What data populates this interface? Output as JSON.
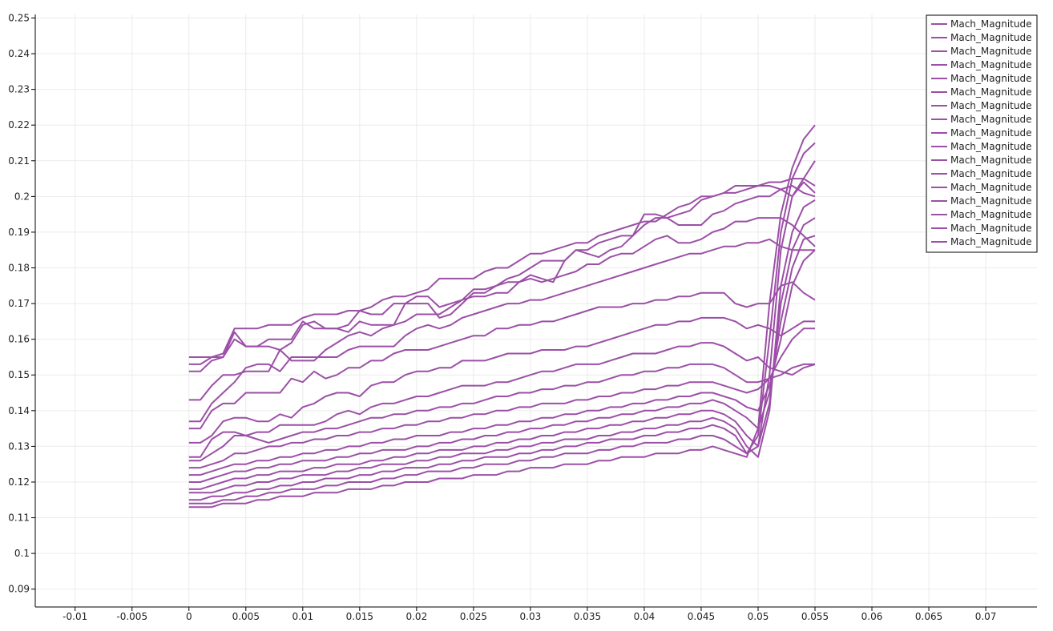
{
  "series_color": "#9b4fa6",
  "chart_data": {
    "type": "line",
    "title": "",
    "xlabel": "",
    "ylabel": "",
    "xlim": [
      -0.0135,
      0.0745
    ],
    "ylim": [
      0.085,
      0.251
    ],
    "grid": true,
    "legend_position": "top-right",
    "x_ticks": [
      "-0.01",
      "-0.005",
      "0",
      "0.005",
      "0.01",
      "0.015",
      "0.02",
      "0.025",
      "0.03",
      "0.035",
      "0.04",
      "0.045",
      "0.05",
      "0.055",
      "0.06",
      "0.065",
      "0.07"
    ],
    "y_ticks": [
      "0.09",
      "0.1",
      "0.11",
      "0.12",
      "0.13",
      "0.14",
      "0.15",
      "0.16",
      "0.17",
      "0.18",
      "0.19",
      "0.2",
      "0.21",
      "0.22",
      "0.23",
      "0.24",
      "0.25"
    ],
    "series": [
      {
        "name": "Mach_Magnitude",
        "y": [
          0.155,
          0.155,
          0.155,
          0.156,
          0.163,
          0.163,
          0.163,
          0.164,
          0.164,
          0.164,
          0.166,
          0.167,
          0.167,
          0.167,
          0.168,
          0.168,
          0.169,
          0.171,
          0.172,
          0.172,
          0.173,
          0.174,
          0.177,
          0.177,
          0.177,
          0.177,
          0.179,
          0.18,
          0.18,
          0.182,
          0.184,
          0.184,
          0.185,
          0.186,
          0.187,
          0.187,
          0.189,
          0.19,
          0.191,
          0.192,
          0.193,
          0.193,
          0.195,
          0.197,
          0.198,
          0.2,
          0.2,
          0.201,
          0.203,
          0.203,
          0.203,
          0.204,
          0.204,
          0.205,
          0.205,
          0.203
        ]
      },
      {
        "name": "Mach_Magnitude",
        "y": [
          0.153,
          0.153,
          0.155,
          0.155,
          0.162,
          0.158,
          0.158,
          0.16,
          0.16,
          0.16,
          0.165,
          0.163,
          0.163,
          0.163,
          0.164,
          0.168,
          0.167,
          0.167,
          0.17,
          0.17,
          0.172,
          0.172,
          0.169,
          0.17,
          0.171,
          0.174,
          0.174,
          0.175,
          0.177,
          0.178,
          0.18,
          0.182,
          0.182,
          0.182,
          0.185,
          0.185,
          0.187,
          0.188,
          0.189,
          0.189,
          0.192,
          0.194,
          0.194,
          0.195,
          0.196,
          0.199,
          0.2,
          0.201,
          0.201,
          0.202,
          0.203,
          0.203,
          0.202,
          0.2,
          0.204,
          0.201
        ]
      },
      {
        "name": "Mach_Magnitude",
        "y": [
          0.151,
          0.151,
          0.154,
          0.155,
          0.16,
          0.158,
          0.158,
          0.158,
          0.157,
          0.159,
          0.164,
          0.165,
          0.163,
          0.163,
          0.162,
          0.165,
          0.164,
          0.164,
          0.164,
          0.17,
          0.17,
          0.17,
          0.166,
          0.167,
          0.17,
          0.173,
          0.173,
          0.175,
          0.176,
          0.176,
          0.178,
          0.177,
          0.176,
          0.182,
          0.185,
          0.184,
          0.183,
          0.185,
          0.186,
          0.189,
          0.195,
          0.195,
          0.194,
          0.192,
          0.192,
          0.192,
          0.195,
          0.196,
          0.198,
          0.199,
          0.2,
          0.2,
          0.202,
          0.203,
          0.201,
          0.2
        ]
      },
      {
        "name": "Mach_Magnitude",
        "y": [
          0.143,
          0.143,
          0.147,
          0.15,
          0.15,
          0.151,
          0.151,
          0.151,
          0.157,
          0.154,
          0.154,
          0.154,
          0.157,
          0.159,
          0.161,
          0.162,
          0.161,
          0.163,
          0.164,
          0.165,
          0.167,
          0.167,
          0.167,
          0.169,
          0.171,
          0.172,
          0.172,
          0.173,
          0.173,
          0.176,
          0.177,
          0.176,
          0.177,
          0.178,
          0.179,
          0.181,
          0.181,
          0.183,
          0.184,
          0.184,
          0.186,
          0.188,
          0.189,
          0.187,
          0.187,
          0.188,
          0.19,
          0.191,
          0.193,
          0.193,
          0.194,
          0.194,
          0.194,
          0.192,
          0.189,
          0.186
        ]
      },
      {
        "name": "Mach_Magnitude",
        "y": [
          0.137,
          0.137,
          0.142,
          0.145,
          0.148,
          0.152,
          0.153,
          0.153,
          0.151,
          0.155,
          0.155,
          0.155,
          0.155,
          0.155,
          0.157,
          0.158,
          0.158,
          0.158,
          0.158,
          0.161,
          0.163,
          0.164,
          0.163,
          0.164,
          0.166,
          0.167,
          0.168,
          0.169,
          0.17,
          0.17,
          0.171,
          0.171,
          0.172,
          0.173,
          0.174,
          0.175,
          0.176,
          0.177,
          0.178,
          0.179,
          0.18,
          0.181,
          0.182,
          0.183,
          0.184,
          0.184,
          0.185,
          0.186,
          0.186,
          0.187,
          0.187,
          0.188,
          0.186,
          0.185,
          0.185,
          0.185
        ]
      },
      {
        "name": "Mach_Magnitude",
        "y": [
          0.135,
          0.135,
          0.14,
          0.142,
          0.142,
          0.145,
          0.145,
          0.145,
          0.145,
          0.149,
          0.148,
          0.151,
          0.149,
          0.15,
          0.152,
          0.152,
          0.154,
          0.154,
          0.156,
          0.157,
          0.157,
          0.157,
          0.158,
          0.159,
          0.16,
          0.161,
          0.161,
          0.163,
          0.163,
          0.164,
          0.164,
          0.165,
          0.165,
          0.166,
          0.167,
          0.168,
          0.169,
          0.169,
          0.169,
          0.17,
          0.17,
          0.171,
          0.171,
          0.172,
          0.172,
          0.173,
          0.173,
          0.173,
          0.17,
          0.169,
          0.17,
          0.17,
          0.175,
          0.176,
          0.173,
          0.171
        ]
      },
      {
        "name": "Mach_Magnitude",
        "y": [
          0.131,
          0.131,
          0.133,
          0.137,
          0.138,
          0.138,
          0.137,
          0.137,
          0.139,
          0.138,
          0.141,
          0.142,
          0.144,
          0.145,
          0.145,
          0.144,
          0.147,
          0.148,
          0.148,
          0.15,
          0.151,
          0.151,
          0.152,
          0.152,
          0.154,
          0.154,
          0.154,
          0.155,
          0.156,
          0.156,
          0.156,
          0.157,
          0.157,
          0.157,
          0.158,
          0.158,
          0.159,
          0.16,
          0.161,
          0.162,
          0.163,
          0.164,
          0.164,
          0.165,
          0.165,
          0.166,
          0.166,
          0.166,
          0.165,
          0.163,
          0.164,
          0.163,
          0.161,
          0.163,
          0.165,
          0.165
        ]
      },
      {
        "name": "Mach_Magnitude",
        "y": [
          0.127,
          0.127,
          0.132,
          0.134,
          0.134,
          0.133,
          0.134,
          0.134,
          0.136,
          0.136,
          0.136,
          0.136,
          0.137,
          0.139,
          0.14,
          0.139,
          0.141,
          0.142,
          0.142,
          0.143,
          0.144,
          0.144,
          0.145,
          0.146,
          0.147,
          0.147,
          0.147,
          0.148,
          0.148,
          0.149,
          0.15,
          0.151,
          0.151,
          0.152,
          0.153,
          0.153,
          0.153,
          0.154,
          0.155,
          0.156,
          0.156,
          0.156,
          0.157,
          0.158,
          0.158,
          0.159,
          0.159,
          0.158,
          0.156,
          0.154,
          0.155,
          0.152,
          0.151,
          0.15,
          0.152,
          0.153
        ]
      },
      {
        "name": "Mach_Magnitude",
        "y": [
          0.126,
          0.126,
          0.128,
          0.13,
          0.133,
          0.133,
          0.132,
          0.131,
          0.132,
          0.133,
          0.134,
          0.134,
          0.135,
          0.135,
          0.136,
          0.137,
          0.138,
          0.138,
          0.139,
          0.139,
          0.14,
          0.14,
          0.141,
          0.141,
          0.142,
          0.142,
          0.143,
          0.144,
          0.144,
          0.145,
          0.145,
          0.146,
          0.146,
          0.147,
          0.147,
          0.148,
          0.148,
          0.149,
          0.15,
          0.15,
          0.151,
          0.151,
          0.152,
          0.152,
          0.153,
          0.153,
          0.153,
          0.152,
          0.15,
          0.148,
          0.148,
          0.149,
          0.15,
          0.152,
          0.153,
          0.153
        ]
      },
      {
        "name": "Mach_Magnitude",
        "y": [
          0.124,
          0.124,
          0.125,
          0.126,
          0.128,
          0.128,
          0.129,
          0.13,
          0.13,
          0.131,
          0.131,
          0.132,
          0.132,
          0.133,
          0.133,
          0.134,
          0.134,
          0.135,
          0.135,
          0.136,
          0.136,
          0.137,
          0.137,
          0.138,
          0.138,
          0.139,
          0.139,
          0.14,
          0.14,
          0.141,
          0.141,
          0.142,
          0.142,
          0.142,
          0.143,
          0.143,
          0.144,
          0.144,
          0.145,
          0.145,
          0.146,
          0.146,
          0.147,
          0.147,
          0.148,
          0.148,
          0.148,
          0.147,
          0.146,
          0.145,
          0.146,
          0.149,
          0.155,
          0.16,
          0.163,
          0.163
        ]
      },
      {
        "name": "Mach_Magnitude",
        "y": [
          0.122,
          0.122,
          0.123,
          0.124,
          0.125,
          0.125,
          0.126,
          0.126,
          0.127,
          0.127,
          0.128,
          0.128,
          0.129,
          0.129,
          0.13,
          0.13,
          0.131,
          0.131,
          0.132,
          0.132,
          0.133,
          0.133,
          0.133,
          0.134,
          0.134,
          0.135,
          0.135,
          0.136,
          0.136,
          0.137,
          0.137,
          0.138,
          0.138,
          0.139,
          0.139,
          0.14,
          0.14,
          0.141,
          0.141,
          0.142,
          0.142,
          0.143,
          0.143,
          0.144,
          0.144,
          0.145,
          0.145,
          0.144,
          0.143,
          0.141,
          0.14,
          0.147,
          0.16,
          0.175,
          0.182,
          0.185
        ]
      },
      {
        "name": "Mach_Magnitude",
        "y": [
          0.12,
          0.12,
          0.121,
          0.122,
          0.123,
          0.123,
          0.124,
          0.124,
          0.125,
          0.125,
          0.126,
          0.126,
          0.126,
          0.127,
          0.127,
          0.128,
          0.128,
          0.129,
          0.129,
          0.129,
          0.13,
          0.13,
          0.131,
          0.131,
          0.132,
          0.132,
          0.133,
          0.133,
          0.134,
          0.134,
          0.135,
          0.135,
          0.136,
          0.136,
          0.137,
          0.137,
          0.138,
          0.138,
          0.139,
          0.139,
          0.14,
          0.14,
          0.141,
          0.141,
          0.142,
          0.142,
          0.143,
          0.142,
          0.14,
          0.138,
          0.135,
          0.145,
          0.165,
          0.18,
          0.188,
          0.189
        ]
      },
      {
        "name": "Mach_Magnitude",
        "y": [
          0.118,
          0.118,
          0.119,
          0.12,
          0.121,
          0.121,
          0.122,
          0.122,
          0.123,
          0.123,
          0.123,
          0.124,
          0.124,
          0.125,
          0.125,
          0.125,
          0.126,
          0.126,
          0.127,
          0.127,
          0.128,
          0.128,
          0.129,
          0.129,
          0.129,
          0.13,
          0.13,
          0.131,
          0.131,
          0.132,
          0.132,
          0.133,
          0.133,
          0.134,
          0.134,
          0.135,
          0.135,
          0.136,
          0.136,
          0.137,
          0.137,
          0.138,
          0.138,
          0.139,
          0.139,
          0.14,
          0.14,
          0.139,
          0.137,
          0.133,
          0.13,
          0.142,
          0.17,
          0.185,
          0.192,
          0.194
        ]
      },
      {
        "name": "Mach_Magnitude",
        "y": [
          0.117,
          0.117,
          0.117,
          0.118,
          0.119,
          0.119,
          0.12,
          0.12,
          0.121,
          0.121,
          0.122,
          0.122,
          0.122,
          0.123,
          0.123,
          0.124,
          0.124,
          0.125,
          0.125,
          0.125,
          0.126,
          0.126,
          0.127,
          0.127,
          0.128,
          0.128,
          0.128,
          0.129,
          0.129,
          0.13,
          0.13,
          0.131,
          0.131,
          0.132,
          0.132,
          0.132,
          0.133,
          0.133,
          0.134,
          0.134,
          0.135,
          0.135,
          0.136,
          0.136,
          0.137,
          0.137,
          0.138,
          0.137,
          0.135,
          0.13,
          0.127,
          0.14,
          0.175,
          0.19,
          0.197,
          0.199
        ]
      },
      {
        "name": "Mach_Magnitude",
        "y": [
          0.115,
          0.115,
          0.116,
          0.116,
          0.117,
          0.117,
          0.118,
          0.118,
          0.119,
          0.119,
          0.12,
          0.12,
          0.121,
          0.121,
          0.121,
          0.122,
          0.122,
          0.123,
          0.123,
          0.124,
          0.124,
          0.124,
          0.125,
          0.125,
          0.126,
          0.126,
          0.127,
          0.127,
          0.127,
          0.128,
          0.128,
          0.129,
          0.129,
          0.13,
          0.13,
          0.131,
          0.131,
          0.132,
          0.132,
          0.132,
          0.133,
          0.133,
          0.134,
          0.134,
          0.135,
          0.135,
          0.136,
          0.135,
          0.133,
          0.128,
          0.13,
          0.15,
          0.185,
          0.2,
          0.205,
          0.21
        ]
      },
      {
        "name": "Mach_Magnitude",
        "y": [
          0.114,
          0.114,
          0.114,
          0.115,
          0.115,
          0.116,
          0.116,
          0.117,
          0.117,
          0.118,
          0.118,
          0.118,
          0.119,
          0.119,
          0.12,
          0.12,
          0.12,
          0.121,
          0.121,
          0.122,
          0.122,
          0.123,
          0.123,
          0.123,
          0.124,
          0.124,
          0.125,
          0.125,
          0.125,
          0.126,
          0.126,
          0.127,
          0.127,
          0.128,
          0.128,
          0.128,
          0.129,
          0.129,
          0.13,
          0.13,
          0.131,
          0.131,
          0.131,
          0.132,
          0.132,
          0.133,
          0.133,
          0.132,
          0.13,
          0.128,
          0.133,
          0.16,
          0.19,
          0.205,
          0.212,
          0.215
        ]
      },
      {
        "name": "Mach_Magnitude",
        "y": [
          0.113,
          0.113,
          0.113,
          0.114,
          0.114,
          0.114,
          0.115,
          0.115,
          0.116,
          0.116,
          0.116,
          0.117,
          0.117,
          0.117,
          0.118,
          0.118,
          0.118,
          0.119,
          0.119,
          0.12,
          0.12,
          0.12,
          0.121,
          0.121,
          0.121,
          0.122,
          0.122,
          0.122,
          0.123,
          0.123,
          0.124,
          0.124,
          0.124,
          0.125,
          0.125,
          0.125,
          0.126,
          0.126,
          0.127,
          0.127,
          0.127,
          0.128,
          0.128,
          0.128,
          0.129,
          0.129,
          0.13,
          0.129,
          0.128,
          0.127,
          0.135,
          0.17,
          0.195,
          0.208,
          0.216,
          0.22
        ]
      }
    ],
    "x_start": 0,
    "x_step": 0.001
  }
}
